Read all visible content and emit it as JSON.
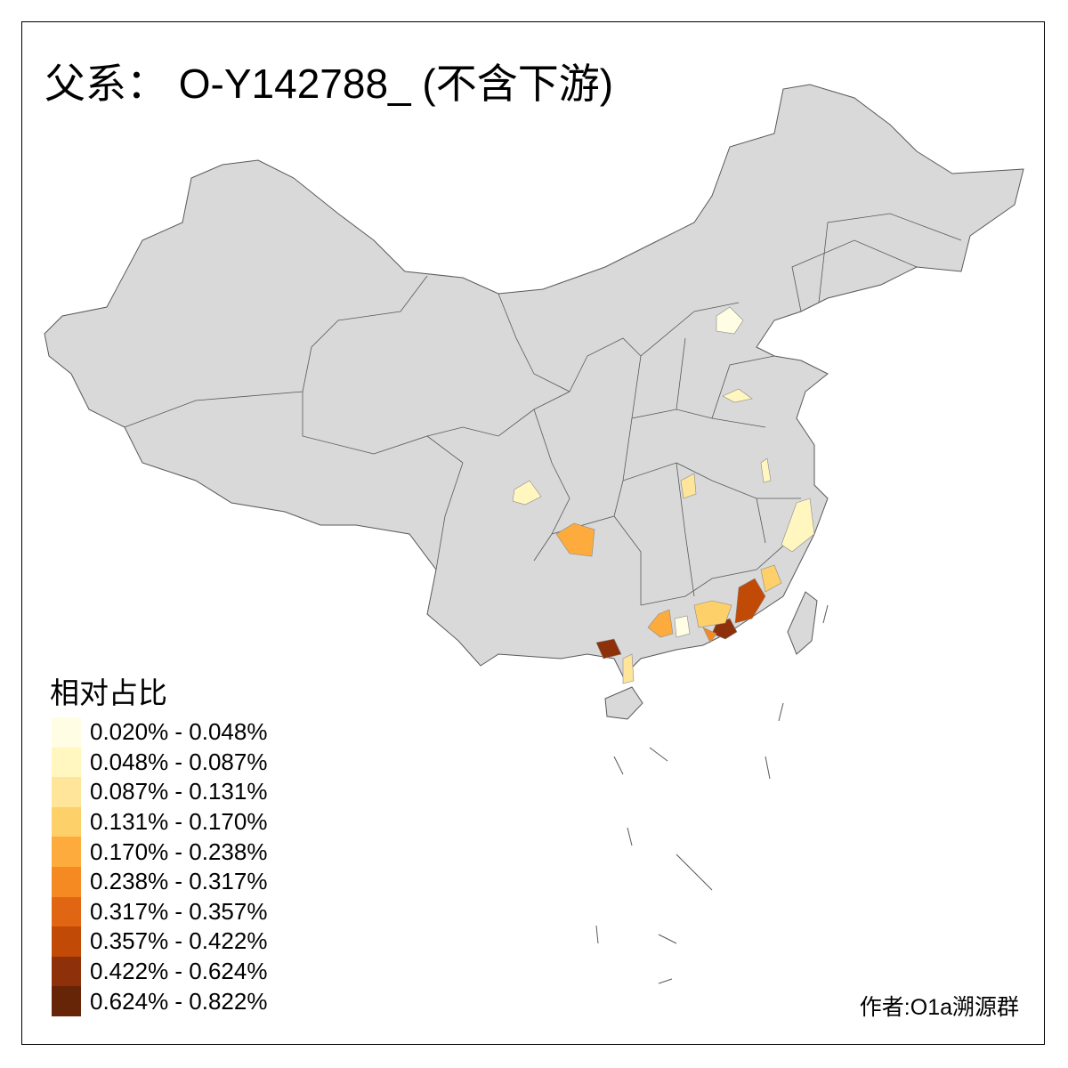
{
  "title": "父系： O-Y142788_ (不含下游)",
  "legend": {
    "title": "相对占比",
    "items": [
      {
        "label": "0.020% - 0.048%",
        "color": "#FFFDE4"
      },
      {
        "label": "0.048% - 0.087%",
        "color": "#FFF6C0"
      },
      {
        "label": "0.087% - 0.131%",
        "color": "#FEE599"
      },
      {
        "label": "0.131% - 0.170%",
        "color": "#FED06A"
      },
      {
        "label": "0.170% - 0.238%",
        "color": "#FDAB3C"
      },
      {
        "label": "0.238% - 0.317%",
        "color": "#F58A22"
      },
      {
        "label": "0.317% - 0.357%",
        "color": "#E06614"
      },
      {
        "label": "0.357% - 0.422%",
        "color": "#C04A06"
      },
      {
        "label": "0.422% - 0.624%",
        "color": "#8E300A"
      },
      {
        "label": "0.624% - 0.822%",
        "color": "#662506"
      }
    ]
  },
  "map_colors": {
    "base": "#D9D9D9",
    "border": "#595959"
  },
  "credit": "作者:O1a溯源群"
}
